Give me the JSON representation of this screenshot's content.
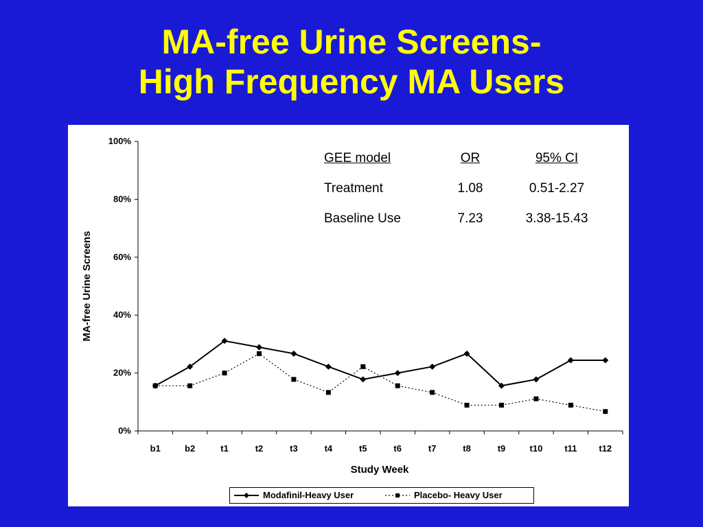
{
  "slide": {
    "title_line1": "MA-free Urine Screens-",
    "title_line2": "High Frequency MA Users"
  },
  "colors": {
    "background": "#1a1ad6",
    "title": "#ffff00",
    "panel": "#ffffff",
    "series": "#000000"
  },
  "stats_table": {
    "headers": [
      "GEE model",
      "OR",
      "95% CI"
    ],
    "rows": [
      [
        "Treatment",
        "1.08",
        "0.51-2.27"
      ],
      [
        "Baseline Use",
        "7.23",
        "3.38-15.43"
      ]
    ]
  },
  "chart_data": {
    "type": "line",
    "categories": [
      "b1",
      "b2",
      "t1",
      "t2",
      "t3",
      "t4",
      "t5",
      "t6",
      "t7",
      "t8",
      "t9",
      "t10",
      "t11",
      "t12"
    ],
    "series": [
      {
        "name": "Modafinil-Heavy User",
        "line_style": "solid",
        "marker": "diamond",
        "values": [
          15.6,
          22.2,
          31.1,
          28.9,
          26.7,
          22.2,
          17.8,
          20.0,
          22.2,
          26.7,
          15.6,
          17.8,
          24.4,
          24.4
        ]
      },
      {
        "name": "Placebo- Heavy User",
        "line_style": "dotted",
        "marker": "square",
        "values": [
          15.6,
          15.6,
          20.0,
          26.7,
          17.8,
          13.3,
          22.2,
          15.6,
          13.3,
          8.9,
          8.9,
          11.1,
          8.9,
          6.7
        ]
      }
    ],
    "xlabel": "Study Week",
    "ylabel": "MA-free Urine Screens",
    "ylim": [
      0,
      100
    ],
    "yticks": [
      "0%",
      "20%",
      "40%",
      "60%",
      "80%",
      "100%"
    ],
    "grid": false,
    "legend_position": "bottom"
  }
}
